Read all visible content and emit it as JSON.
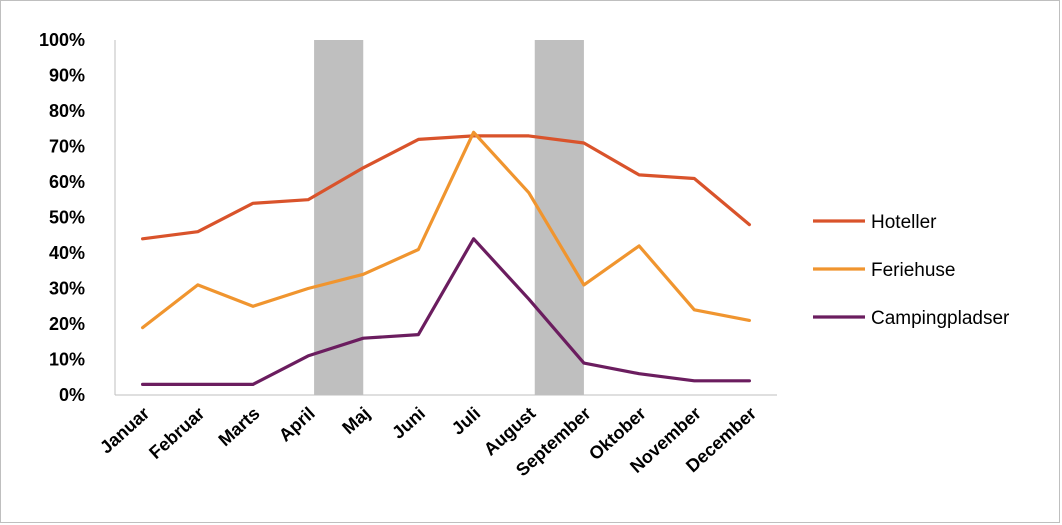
{
  "chart_data": {
    "type": "line",
    "title": "",
    "xlabel": "",
    "ylabel": "",
    "categories": [
      "Januar",
      "Februar",
      "Marts",
      "April",
      "Maj",
      "Juni",
      "Juli",
      "August",
      "September",
      "Oktober",
      "November",
      "December"
    ],
    "y_tick_labels": [
      "0%",
      "10%",
      "20%",
      "30%",
      "40%",
      "50%",
      "60%",
      "70%",
      "80%",
      "90%",
      "100%"
    ],
    "ylim": [
      0,
      100
    ],
    "grid": false,
    "legend_position": "right",
    "shaded_categories": [
      "Maj",
      "September"
    ],
    "shade_color": "#bfbfbf",
    "series": [
      {
        "name": "Hoteller",
        "color": "#d9532b",
        "values": [
          44,
          46,
          54,
          55,
          64,
          72,
          73,
          73,
          71,
          62,
          61,
          48
        ]
      },
      {
        "name": "Feriehuse",
        "color": "#f0952f",
        "values": [
          19,
          31,
          25,
          30,
          34,
          41,
          74,
          57,
          31,
          42,
          24,
          21
        ]
      },
      {
        "name": "Campingpladser",
        "color": "#6b1d5f",
        "values": [
          3,
          3,
          3,
          11,
          16,
          17,
          44,
          27,
          9,
          6,
          4,
          4
        ]
      }
    ]
  }
}
